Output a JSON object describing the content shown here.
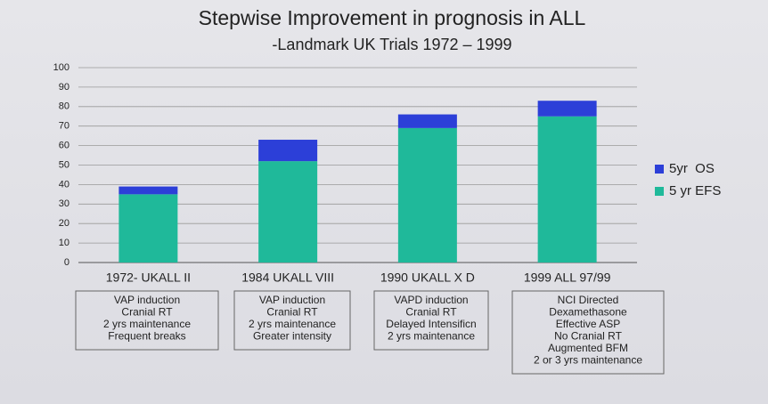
{
  "chart_data": {
    "type": "stacked_bar",
    "title": "Stepwise Improvement in prognosis in ALL",
    "subtitle": "-Landmark UK Trials 1972 – 1999",
    "categories": [
      "1972- UKALL II",
      "1984 UKALL VIII",
      "1990 UKALL X D",
      "1999 ALL 97/99"
    ],
    "series": [
      {
        "name": "5 yr EFS",
        "color": "#1fb99a",
        "values": [
          35,
          52,
          69,
          75
        ]
      },
      {
        "name": "5yr  OS",
        "color": "#2c3fd8",
        "values": [
          4,
          11,
          7,
          8
        ]
      }
    ],
    "ylim": [
      0,
      100
    ],
    "yticks": [
      0,
      10,
      20,
      30,
      40,
      50,
      60,
      70,
      80,
      90,
      100
    ],
    "grid": true,
    "legend": "right",
    "notes": [
      [
        "VAP induction",
        "Cranial RT",
        "2 yrs maintenance",
        "Frequent breaks"
      ],
      [
        "VAP induction",
        "Cranial RT",
        "2 yrs maintenance",
        "Greater intensity"
      ],
      [
        "VAPD induction",
        "Cranial RT",
        "Delayed Intensificn",
        "2 yrs maintenance"
      ],
      [
        "NCI Directed",
        "Dexamethasone",
        "Effective ASP",
        "No Cranial RT",
        "Augmented BFM",
        "2 or 3 yrs maintenance"
      ]
    ]
  }
}
